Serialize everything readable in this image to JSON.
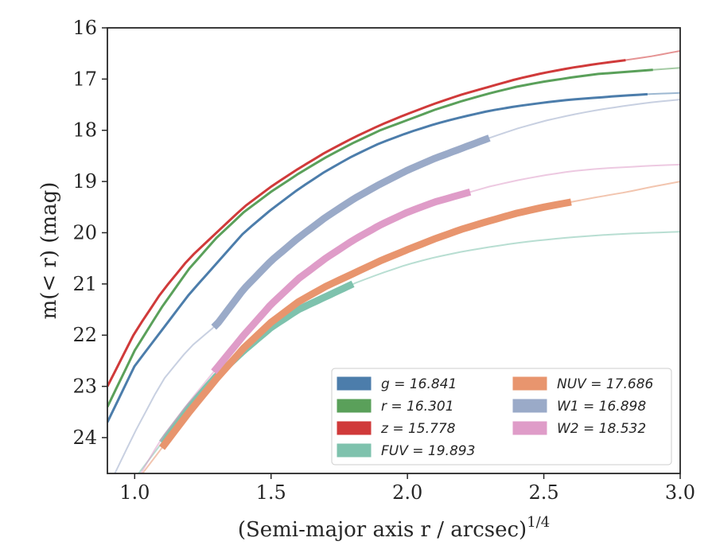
{
  "chart_data": {
    "type": "line",
    "title": "",
    "xlabel": "(Semi-major axis r / arcsec)",
    "xlabel_sup": "1/4",
    "ylabel": "m(< r) (mag)",
    "xlim": [
      0.9,
      3.0
    ],
    "ylim": [
      16,
      24.7
    ],
    "y_inverted": true,
    "grid": false,
    "legend_placement": "lower-right",
    "xticks": [
      "1.0",
      "1.5",
      "2.0",
      "2.5",
      "3.0"
    ],
    "xtick_values": [
      1.0,
      1.5,
      2.0,
      2.5,
      3.0
    ],
    "yticks": [
      "16",
      "17",
      "18",
      "19",
      "20",
      "21",
      "22",
      "23",
      "24"
    ],
    "ytick_values": [
      16,
      17,
      18,
      19,
      20,
      21,
      22,
      23,
      24
    ],
    "series": [
      {
        "name": "g = 16.841",
        "color": "#4c7dab",
        "x": [
          0.9,
          1.0,
          1.1,
          1.2,
          1.3,
          1.4,
          1.5,
          1.6,
          1.7,
          1.8,
          1.9,
          2.0,
          2.1,
          2.2,
          2.3,
          2.4,
          2.5,
          2.6,
          2.7,
          2.8,
          2.9,
          3.0
        ],
        "y": [
          23.7,
          22.6,
          21.9,
          21.2,
          20.6,
          20.0,
          19.55,
          19.15,
          18.8,
          18.5,
          18.25,
          18.05,
          17.88,
          17.74,
          17.62,
          17.53,
          17.46,
          17.4,
          17.36,
          17.32,
          17.29,
          17.27
        ],
        "data_xmax": 2.88
      },
      {
        "name": "r = 16.301",
        "color": "#5aa05a",
        "x": [
          0.9,
          1.0,
          1.1,
          1.2,
          1.3,
          1.4,
          1.5,
          1.6,
          1.7,
          1.8,
          1.9,
          2.0,
          2.1,
          2.2,
          2.3,
          2.4,
          2.5,
          2.6,
          2.7,
          2.8,
          2.9,
          3.0
        ],
        "y": [
          23.4,
          22.3,
          21.45,
          20.7,
          20.1,
          19.6,
          19.2,
          18.85,
          18.53,
          18.25,
          18.0,
          17.8,
          17.6,
          17.43,
          17.28,
          17.15,
          17.05,
          16.97,
          16.9,
          16.86,
          16.82,
          16.78
        ],
        "data_xmax": 2.9
      },
      {
        "name": "z = 15.778",
        "color": "#d03a3a",
        "x": [
          0.9,
          1.0,
          1.1,
          1.2,
          1.3,
          1.4,
          1.5,
          1.6,
          1.7,
          1.8,
          1.9,
          2.0,
          2.1,
          2.2,
          2.3,
          2.4,
          2.5,
          2.6,
          2.7,
          2.8,
          2.9,
          3.0
        ],
        "y": [
          23.0,
          21.95,
          21.15,
          20.5,
          20.0,
          19.5,
          19.1,
          18.75,
          18.43,
          18.15,
          17.9,
          17.68,
          17.48,
          17.3,
          17.15,
          17.0,
          16.88,
          16.78,
          16.7,
          16.63,
          16.55,
          16.45
        ],
        "data_xmax": 2.8
      },
      {
        "name": "FUV = 19.893",
        "color": "#7ec2ad",
        "x": [
          1.1,
          1.2,
          1.3,
          1.4,
          1.5,
          1.6,
          1.7,
          1.8,
          1.9,
          2.0,
          2.1,
          2.2,
          2.3,
          2.4,
          2.5,
          2.6,
          2.7,
          2.8,
          2.9,
          3.0
        ],
        "y": [
          24.1,
          23.4,
          22.8,
          22.3,
          21.85,
          21.5,
          21.25,
          21.0,
          20.8,
          20.62,
          20.48,
          20.37,
          20.28,
          20.2,
          20.14,
          20.09,
          20.05,
          20.02,
          20.0,
          19.98
        ],
        "data_xmin": 1.1,
        "data_xmax": 1.8,
        "extrap_xmin": 0.9,
        "extrap_y0": 25.5
      },
      {
        "name": "NUV = 17.686",
        "color": "#e8956e",
        "x": [
          1.1,
          1.2,
          1.3,
          1.4,
          1.5,
          1.6,
          1.7,
          1.8,
          1.9,
          2.0,
          2.1,
          2.2,
          2.3,
          2.4,
          2.5,
          2.6,
          2.7,
          2.8,
          2.9,
          3.0
        ],
        "y": [
          24.2,
          23.5,
          22.85,
          22.25,
          21.75,
          21.35,
          21.05,
          20.8,
          20.55,
          20.33,
          20.12,
          19.93,
          19.77,
          19.62,
          19.5,
          19.4,
          19.3,
          19.21,
          19.1,
          19.0
        ],
        "data_xmin": 1.1,
        "data_xmax": 2.6
      },
      {
        "name": "W1 = 16.898",
        "color": "#9aaac8",
        "x": [
          0.9,
          1.0,
          1.1,
          1.2,
          1.3,
          1.4,
          1.5,
          1.6,
          1.7,
          1.8,
          1.9,
          2.0,
          2.1,
          2.2,
          2.3,
          2.4,
          2.5,
          2.6,
          2.7,
          2.8,
          2.9,
          3.0
        ],
        "y": [
          25.0,
          23.9,
          22.9,
          22.25,
          21.8,
          21.1,
          20.55,
          20.1,
          19.7,
          19.35,
          19.05,
          18.78,
          18.55,
          18.35,
          18.15,
          17.97,
          17.82,
          17.7,
          17.6,
          17.52,
          17.45,
          17.4
        ],
        "data_xmin": 1.29,
        "data_xmax": 2.3
      },
      {
        "name": "W2 = 18.532",
        "color": "#df9cc8",
        "x": [
          0.9,
          1.0,
          1.1,
          1.2,
          1.3,
          1.4,
          1.5,
          1.6,
          1.7,
          1.8,
          1.9,
          2.0,
          2.1,
          2.2,
          2.3,
          2.4,
          2.5,
          2.6,
          2.7,
          2.8,
          2.9,
          3.0
        ],
        "y": [
          25.8,
          24.9,
          24.0,
          23.3,
          22.65,
          22.0,
          21.4,
          20.9,
          20.5,
          20.15,
          19.85,
          19.6,
          19.4,
          19.25,
          19.1,
          18.98,
          18.88,
          18.8,
          18.75,
          18.72,
          18.69,
          18.67
        ],
        "data_xmin": 1.29,
        "data_xmax": 2.23
      }
    ]
  }
}
